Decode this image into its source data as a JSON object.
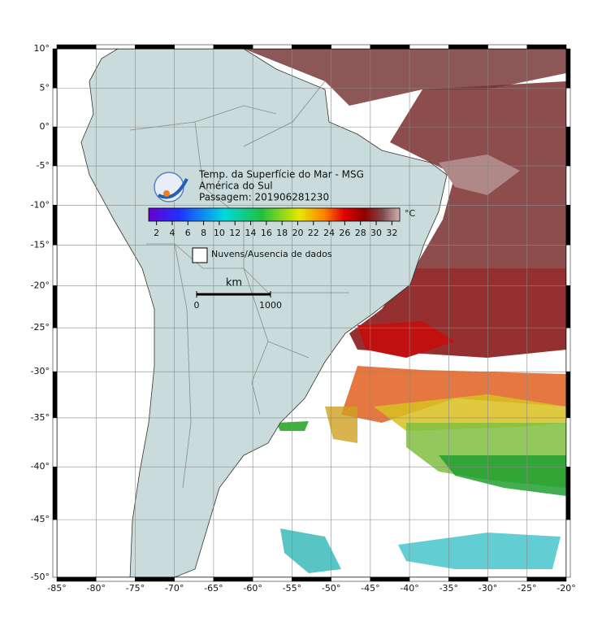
{
  "map": {
    "title": "Temp. da Superfície do Mar - MSG",
    "region": "América do Sul",
    "pass": "Passagem: 201906281230",
    "lonlim": [
      -85,
      -20
    ],
    "latlim": [
      -50,
      10
    ],
    "lon_ticks": [
      {
        "value": -85,
        "label": "-85°"
      },
      {
        "value": -80,
        "label": "-80°"
      },
      {
        "value": -75,
        "label": "-75°"
      },
      {
        "value": -70,
        "label": "-70°"
      },
      {
        "value": -65,
        "label": "-65°"
      },
      {
        "value": -60,
        "label": "-60°"
      },
      {
        "value": -55,
        "label": "-55°"
      },
      {
        "value": -50,
        "label": "-50°"
      },
      {
        "value": -45,
        "label": "-45°"
      },
      {
        "value": -40,
        "label": "-40°"
      },
      {
        "value": -35,
        "label": "-35°"
      },
      {
        "value": -30,
        "label": "-30°"
      },
      {
        "value": -25,
        "label": "-25°"
      },
      {
        "value": -20,
        "label": "-20°"
      }
    ],
    "lat_ticks": [
      {
        "value": 10,
        "label": "10°"
      },
      {
        "value": 5,
        "label": "5°"
      },
      {
        "value": 0,
        "label": "0°"
      },
      {
        "value": -5,
        "label": "-5°"
      },
      {
        "value": -10,
        "label": "-10°"
      },
      {
        "value": -15,
        "label": "-15°"
      },
      {
        "value": -20,
        "label": "-20°"
      },
      {
        "value": -25,
        "label": "-25°"
      },
      {
        "value": -30,
        "label": "-30°"
      },
      {
        "value": -35,
        "label": "-35°"
      },
      {
        "value": -40,
        "label": "-40°"
      },
      {
        "value": -45,
        "label": "-45°"
      },
      {
        "value": -50,
        "label": "-50°"
      }
    ],
    "colorbar": {
      "unit": "°C",
      "lim": [
        1,
        33
      ],
      "ticks": [
        2,
        4,
        6,
        8,
        10,
        12,
        14,
        16,
        18,
        20,
        22,
        24,
        26,
        28,
        30,
        32
      ]
    },
    "legend": "Nuvens/Ausencia de dados",
    "scale_bar": {
      "unit": "km",
      "ticks": [
        0,
        1000
      ]
    }
  }
}
